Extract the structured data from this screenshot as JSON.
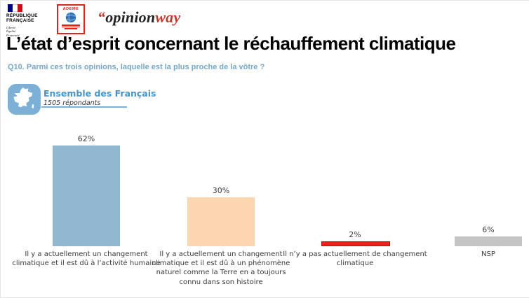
{
  "header": {
    "republique": {
      "name_lines": [
        "RÉPUBLIQUE",
        "FRANÇAISE"
      ],
      "motto_lines": [
        "Liberté",
        "Égalité",
        "Fraternité"
      ]
    },
    "ademe": {
      "name": "ADEME"
    },
    "opinionway": {
      "quote": "“",
      "part1": "opinion",
      "part2": "way"
    }
  },
  "title": "L’état d’esprit concernant le réchauffement climatique",
  "question": "Q10. Parmi ces trois opinions, laquelle est la plus proche de la vôtre ?",
  "sample": {
    "label": "Ensemble des Français",
    "respondents": "1505 répondants"
  },
  "chart_data": {
    "type": "bar",
    "title": "L’état d’esprit concernant le réchauffement climatique",
    "subtitle": "Q10. Parmi ces trois opinions, laquelle est la plus proche de la vôtre ?",
    "categories": [
      "Il y a actuellement un changement climatique et il est dû à l’activité humaine",
      "Il y a actuellement un changement climatique et il est dû à un phénomène naturel comme la Terre en a toujours connu dans son histoire",
      "Il n’y a pas actuellement de changement climatique",
      "NSP"
    ],
    "values": [
      62,
      30,
      2,
      6
    ],
    "value_labels": [
      "62%",
      "30%",
      "2%",
      "6%"
    ],
    "colors": [
      "#92b8d1",
      "#fbd6b1",
      "#e8231a",
      "#c4c4c4"
    ],
    "border_colors": [
      null,
      null,
      "#b3150b",
      null
    ],
    "unit": "%",
    "ylim": [
      0,
      70
    ],
    "grid": false,
    "legend": null,
    "axis": "hidden"
  },
  "colors": {
    "question_blue": "#76a7c9",
    "badge_blue": "#7cb0d6",
    "sample_blue": "#4b94c4",
    "brand_red": "#c3392b",
    "flag_blue": "#000091",
    "flag_red": "#e1000f"
  }
}
